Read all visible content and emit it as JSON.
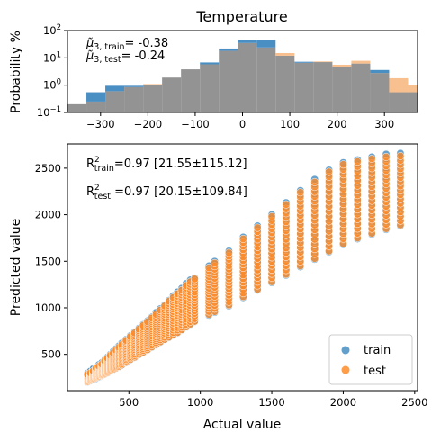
{
  "chart_data": [
    {
      "type": "histogram",
      "title": "Temperature",
      "ylabel": "Probability %",
      "xlabel": "",
      "yscale": "log",
      "xlim": [
        -370,
        370
      ],
      "ylim": [
        0.1,
        100
      ],
      "xticks": [
        -300,
        -200,
        -100,
        0,
        100,
        200,
        300
      ],
      "xtick_labels": [
        "−300",
        "−200",
        "−100",
        "0",
        "100",
        "200",
        "300"
      ],
      "yticks": [
        0.1,
        1,
        10,
        100
      ],
      "ytick_labels": [
        "10<sup>−1</sup>",
        "10<sup>0</sup>",
        "10<sup>1</sup>",
        "10<sup>2</sup>"
      ],
      "annotations": {
        "train": {
          "label": "μ̃3,train",
          "main": "μ̃",
          "sub": "3, train",
          "value": "= -0.38"
        },
        "test": {
          "label": "μ̃3,test",
          "main": "μ̃",
          "sub": "3, test",
          "value": "= -0.24"
        }
      },
      "colors": {
        "train": "#4a8fc4",
        "test": "#f9c08f",
        "overlap": "#939393"
      },
      "series": [
        {
          "name": "train",
          "bins": [
            [
              -370,
              -330
            ],
            [
              -330,
              -290
            ],
            [
              -290,
              -250
            ],
            [
              -250,
              -210
            ],
            [
              -210,
              -170
            ],
            [
              -170,
              -130
            ],
            [
              -130,
              -90
            ],
            [
              -90,
              -50
            ],
            [
              -50,
              -10
            ],
            [
              -10,
              30
            ],
            [
              30,
              70
            ],
            [
              70,
              110
            ],
            [
              110,
              150
            ],
            [
              150,
              190
            ],
            [
              190,
              230
            ],
            [
              230,
              270
            ],
            [
              270,
              310
            ],
            [
              310,
              350
            ],
            [
              350,
              370
            ]
          ],
          "values": [
            0.2,
            0.55,
            0.95,
            0.95,
            1.05,
            1.9,
            3.8,
            6.8,
            22,
            45,
            45,
            12,
            7.2,
            7.0,
            4.8,
            6.2,
            3.6,
            0.55,
            0.55
          ]
        },
        {
          "name": "test",
          "bins": [
            [
              -370,
              -330
            ],
            [
              -330,
              -290
            ],
            [
              -290,
              -250
            ],
            [
              -250,
              -210
            ],
            [
              -210,
              -170
            ],
            [
              -170,
              -130
            ],
            [
              -130,
              -90
            ],
            [
              -90,
              -50
            ],
            [
              -50,
              -10
            ],
            [
              -10,
              30
            ],
            [
              30,
              70
            ],
            [
              70,
              110
            ],
            [
              110,
              150
            ],
            [
              150,
              190
            ],
            [
              190,
              230
            ],
            [
              230,
              270
            ],
            [
              270,
              310
            ],
            [
              310,
              350
            ],
            [
              350,
              370
            ]
          ],
          "values": [
            0.2,
            0.25,
            0.6,
            0.85,
            1.1,
            1.9,
            3.8,
            5.8,
            18,
            35,
            24,
            15,
            6.6,
            7.4,
            5.6,
            7.8,
            2.8,
            1.8,
            1.0
          ]
        }
      ]
    },
    {
      "type": "scatter",
      "xlabel": "Actual value",
      "ylabel": "Predicted value",
      "xlim": [
        70,
        2520
      ],
      "ylim": [
        110,
        2760
      ],
      "xticks": [
        500,
        1000,
        1500,
        2000,
        2500
      ],
      "yticks": [
        500,
        1000,
        1500,
        2000,
        2500
      ],
      "annotations": {
        "train": {
          "prefix": "R",
          "sup": "2",
          "sub": "train",
          "text": "=0.97 [21.55±115.12]"
        },
        "test": {
          "prefix": "R",
          "sup": "2",
          "sub": "test",
          "text": " =0.97 [20.15±109.84]"
        }
      },
      "legend": {
        "position": "lower right",
        "entries": [
          "train",
          "test"
        ]
      },
      "colors": {
        "train": "#2f7fba",
        "test": "#ff8c28"
      },
      "x_values": [
        210,
        230,
        250,
        270,
        290,
        310,
        330,
        350,
        370,
        390,
        410,
        430,
        450,
        480,
        510,
        540,
        570,
        600,
        630,
        660,
        690,
        720,
        750,
        780,
        810,
        840,
        870,
        900,
        930,
        960,
        1060,
        1100,
        1200,
        1300,
        1400,
        1500,
        1600,
        1700,
        1800,
        1900,
        2000,
        2100,
        2200,
        2300,
        2400
      ],
      "series": [
        {
          "name": "train",
          "y_ranges": [
            [
              200,
              300
            ],
            [
              215,
              320
            ],
            [
              225,
              345
            ],
            [
              240,
              365
            ],
            [
              255,
              390
            ],
            [
              270,
              410
            ],
            [
              285,
              440
            ],
            [
              300,
              470
            ],
            [
              320,
              500
            ],
            [
              335,
              530
            ],
            [
              350,
              560
            ],
            [
              365,
              590
            ],
            [
              380,
              620
            ],
            [
              410,
              660
            ],
            [
              440,
              700
            ],
            [
              465,
              740
            ],
            [
              495,
              780
            ],
            [
              520,
              820
            ],
            [
              545,
              860
            ],
            [
              575,
              900
            ],
            [
              600,
              950
            ],
            [
              630,
              990
            ],
            [
              655,
              1030
            ],
            [
              680,
              1080
            ],
            [
              705,
              1130
            ],
            [
              730,
              1170
            ],
            [
              760,
              1210
            ],
            [
              790,
              1260
            ],
            [
              820,
              1300
            ],
            [
              850,
              1320
            ],
            [
              920,
              1450
            ],
            [
              950,
              1500
            ],
            [
              1020,
              1610
            ],
            [
              1110,
              1760
            ],
            [
              1190,
              1880
            ],
            [
              1270,
              2000
            ],
            [
              1350,
              2130
            ],
            [
              1440,
              2260
            ],
            [
              1520,
              2380
            ],
            [
              1600,
              2480
            ],
            [
              1680,
              2560
            ],
            [
              1740,
              2590
            ],
            [
              1790,
              2620
            ],
            [
              1840,
              2650
            ],
            [
              1880,
              2660
            ]
          ]
        },
        {
          "name": "test",
          "y_ranges": [
            [
              205,
              290
            ],
            [
              220,
              305
            ],
            [
              235,
              330
            ],
            [
              250,
              355
            ],
            [
              262,
              380
            ],
            [
              275,
              400
            ],
            [
              290,
              430
            ],
            [
              305,
              460
            ],
            [
              325,
              490
            ],
            [
              340,
              515
            ],
            [
              355,
              545
            ],
            [
              370,
              575
            ],
            [
              385,
              605
            ],
            [
              415,
              650
            ],
            [
              445,
              690
            ],
            [
              470,
              730
            ],
            [
              500,
              770
            ],
            [
              525,
              810
            ],
            [
              550,
              850
            ],
            [
              580,
              890
            ],
            [
              605,
              930
            ],
            [
              635,
              975
            ],
            [
              660,
              1020
            ],
            [
              685,
              1070
            ],
            [
              710,
              1110
            ],
            [
              735,
              1150
            ],
            [
              765,
              1190
            ],
            [
              795,
              1240
            ],
            [
              825,
              1280
            ],
            [
              855,
              1310
            ],
            [
              930,
              1430
            ],
            [
              960,
              1480
            ],
            [
              1030,
              1590
            ],
            [
              1120,
              1740
            ],
            [
              1200,
              1860
            ],
            [
              1280,
              1980
            ],
            [
              1360,
              2110
            ],
            [
              1450,
              2240
            ],
            [
              1530,
              2350
            ],
            [
              1610,
              2460
            ],
            [
              1690,
              2540
            ],
            [
              1750,
              2570
            ],
            [
              1800,
              2600
            ],
            [
              1850,
              2620
            ],
            [
              1890,
              2630
            ]
          ]
        }
      ]
    }
  ]
}
